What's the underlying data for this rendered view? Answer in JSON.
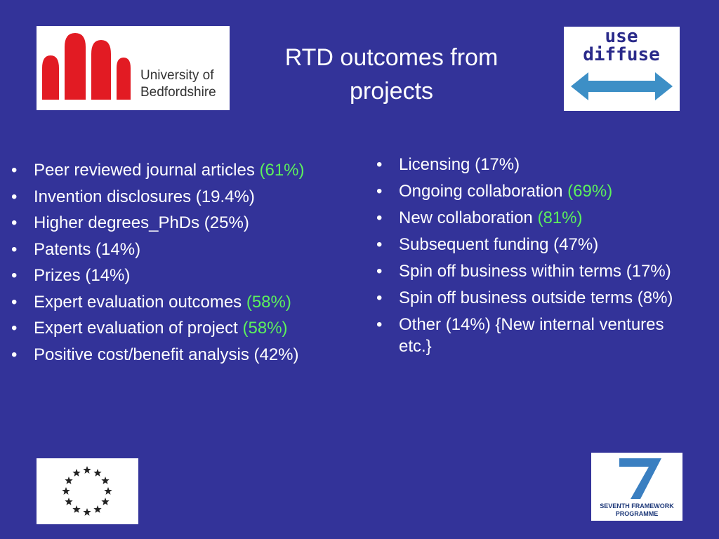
{
  "header": {
    "title": "RTD outcomes from projects"
  },
  "logos": {
    "university": [
      "University of",
      "Bedfordshire"
    ],
    "use_diffuse": [
      "use",
      "diffuse"
    ],
    "fp7": [
      "SEVENTH FRAMEWORK",
      "PROGRAMME"
    ]
  },
  "lists": {
    "left": [
      {
        "text": "Peer reviewed journal articles",
        "highlight": "(61%)"
      },
      {
        "text": "Invention disclosures (19.4%)"
      },
      {
        "text": "Higher degrees_PhDs (25%)"
      },
      {
        "text": "Patents (14%)"
      },
      {
        "text": "Prizes (14%)"
      },
      {
        "text": "Expert evaluation outcomes",
        "highlight": "(58%)"
      },
      {
        "text": "Expert evaluation of project",
        "highlight": "(58%)"
      },
      {
        "text": "Positive cost/benefit analysis (42%)"
      }
    ],
    "right": [
      {
        "text": "Licensing (17%)"
      },
      {
        "text": "Ongoing collaboration",
        "highlight": "(69%)"
      },
      {
        "text": "New collaboration",
        "highlight": "(81%)"
      },
      {
        "text": "Subsequent funding (47%)"
      },
      {
        "text": "Spin off business within terms (17%)"
      },
      {
        "text": "Spin off business outside terms (8%)"
      },
      {
        "text": "Other (14%) {New internal ventures etc.}"
      }
    ]
  }
}
